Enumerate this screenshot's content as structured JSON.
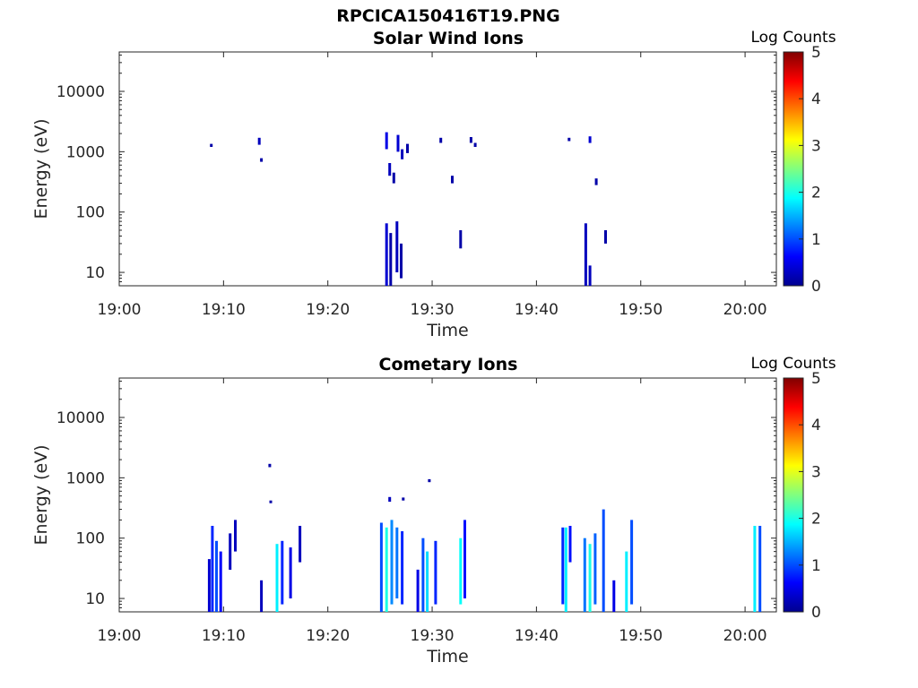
{
  "figure_title": "RPCICA150416T19.PNG",
  "chart_data": [
    {
      "type": "heatmap",
      "title": "Solar Wind Ions",
      "xlabel": "Time",
      "ylabel": "Energy (eV)",
      "xlim": [
        "19:00",
        "20:03"
      ],
      "ylim": [
        6,
        45000
      ],
      "yscale": "log",
      "x_ticks": [
        "19:00",
        "19:10",
        "19:20",
        "19:30",
        "19:40",
        "19:50",
        "20:00"
      ],
      "y_ticks": [
        "10",
        "100",
        "1000",
        "10000"
      ],
      "colorbar": {
        "title": "Log Counts",
        "range": [
          0,
          5
        ],
        "ticks": [
          "0",
          "1",
          "2",
          "3",
          "4",
          "5"
        ],
        "colormap": "jet"
      },
      "grid": false,
      "cells": [
        {
          "t": "19:08.7",
          "e": [
            1200,
            1350
          ],
          "v": 0.2
        },
        {
          "t": "19:13.3",
          "e": [
            1300,
            1700
          ],
          "v": 0.3
        },
        {
          "t": "19:13.5",
          "e": [
            680,
            780
          ],
          "v": 0.2
        },
        {
          "t": "19:25.5",
          "e": [
            1100,
            2100
          ],
          "v": 0.5
        },
        {
          "t": "19:25.8",
          "e": [
            400,
            650
          ],
          "v": 0.3
        },
        {
          "t": "19:26.2",
          "e": [
            300,
            450
          ],
          "v": 0.2
        },
        {
          "t": "19:26.6",
          "e": [
            1000,
            1900
          ],
          "v": 0.4
        },
        {
          "t": "19:27.0",
          "e": [
            750,
            1100
          ],
          "v": 0.3
        },
        {
          "t": "19:27.5",
          "e": [
            950,
            1350
          ],
          "v": 0.2
        },
        {
          "t": "19:25.5",
          "e": [
            6,
            65
          ],
          "v": 0.4
        },
        {
          "t": "19:25.9",
          "e": [
            6,
            45
          ],
          "v": 0.2
        },
        {
          "t": "19:26.5",
          "e": [
            10,
            70
          ],
          "v": 0.3
        },
        {
          "t": "19:26.9",
          "e": [
            8,
            30
          ],
          "v": 0.2
        },
        {
          "t": "19:30.7",
          "e": [
            1400,
            1700
          ],
          "v": 0.2
        },
        {
          "t": "19:31.8",
          "e": [
            300,
            400
          ],
          "v": 0.2
        },
        {
          "t": "19:32.6",
          "e": [
            25,
            50
          ],
          "v": 0.2
        },
        {
          "t": "19:33.6",
          "e": [
            1400,
            1750
          ],
          "v": 0.2
        },
        {
          "t": "19:34.0",
          "e": [
            1200,
            1400
          ],
          "v": 0.2
        },
        {
          "t": "19:43.0",
          "e": [
            1500,
            1700
          ],
          "v": 0.2
        },
        {
          "t": "19:44.6",
          "e": [
            6,
            65
          ],
          "v": 0.3
        },
        {
          "t": "19:45.0",
          "e": [
            6,
            13
          ],
          "v": 0.3
        },
        {
          "t": "19:45.0",
          "e": [
            1400,
            1800
          ],
          "v": 0.4
        },
        {
          "t": "19:45.6",
          "e": [
            280,
            360
          ],
          "v": 0.2
        },
        {
          "t": "19:46.5",
          "e": [
            30,
            50
          ],
          "v": 0.2
        }
      ]
    },
    {
      "type": "heatmap",
      "title": "Cometary Ions",
      "xlabel": "Time",
      "ylabel": "Energy (eV)",
      "xlim": [
        "19:00",
        "20:03"
      ],
      "ylim": [
        6,
        45000
      ],
      "yscale": "log",
      "x_ticks": [
        "19:00",
        "19:10",
        "19:20",
        "19:30",
        "19:40",
        "19:50",
        "20:00"
      ],
      "y_ticks": [
        "10",
        "100",
        "1000",
        "10000"
      ],
      "colorbar": {
        "title": "Log Counts",
        "range": [
          0,
          5
        ],
        "ticks": [
          "0",
          "1",
          "2",
          "3",
          "4",
          "5"
        ],
        "colormap": "jet"
      },
      "grid": false,
      "cells": [
        {
          "t": "19:08.5",
          "e": [
            6,
            45
          ],
          "v": 0.4
        },
        {
          "t": "19:08.8",
          "e": [
            6,
            160
          ],
          "v": 0.8
        },
        {
          "t": "19:09.2",
          "e": [
            6,
            90
          ],
          "v": 1.0
        },
        {
          "t": "19:09.6",
          "e": [
            6,
            60
          ],
          "v": 0.6
        },
        {
          "t": "19:10.5",
          "e": [
            30,
            120
          ],
          "v": 0.3
        },
        {
          "t": "19:11.0",
          "e": [
            60,
            200
          ],
          "v": 0.3
        },
        {
          "t": "19:13.5",
          "e": [
            6,
            20
          ],
          "v": 0.3
        },
        {
          "t": "19:15.0",
          "e": [
            6,
            80
          ],
          "v": 1.8
        },
        {
          "t": "19:15.5",
          "e": [
            8,
            90
          ],
          "v": 0.8
        },
        {
          "t": "19:16.3",
          "e": [
            10,
            70
          ],
          "v": 0.5
        },
        {
          "t": "19:17.2",
          "e": [
            40,
            160
          ],
          "v": 0.3
        },
        {
          "t": "19:14.3",
          "e": [
            1500,
            1700
          ],
          "v": 0.2
        },
        {
          "t": "19:14.4",
          "e": [
            380,
            420
          ],
          "v": 0.2
        },
        {
          "t": "19:25.0",
          "e": [
            6,
            180
          ],
          "v": 1.0
        },
        {
          "t": "19:25.5",
          "e": [
            6,
            150
          ],
          "v": 2.0
        },
        {
          "t": "19:26.0",
          "e": [
            8,
            200
          ],
          "v": 1.3
        },
        {
          "t": "19:26.5",
          "e": [
            10,
            150
          ],
          "v": 1.2
        },
        {
          "t": "19:27.0",
          "e": [
            8,
            130
          ],
          "v": 0.8
        },
        {
          "t": "19:25.8",
          "e": [
            400,
            480
          ],
          "v": 0.3
        },
        {
          "t": "19:27.1",
          "e": [
            420,
            470
          ],
          "v": 0.2
        },
        {
          "t": "19:28.5",
          "e": [
            6,
            30
          ],
          "v": 0.5
        },
        {
          "t": "19:29.0",
          "e": [
            6,
            100
          ],
          "v": 1.0
        },
        {
          "t": "19:29.4",
          "e": [
            6,
            60
          ],
          "v": 1.7
        },
        {
          "t": "19:30.2",
          "e": [
            8,
            90
          ],
          "v": 0.8
        },
        {
          "t": "19:29.6",
          "e": [
            850,
            950
          ],
          "v": 0.2
        },
        {
          "t": "19:32.6",
          "e": [
            8,
            100
          ],
          "v": 1.9
        },
        {
          "t": "19:33.0",
          "e": [
            10,
            200
          ],
          "v": 0.7
        },
        {
          "t": "19:42.4",
          "e": [
            8,
            150
          ],
          "v": 0.8
        },
        {
          "t": "19:42.7",
          "e": [
            6,
            150
          ],
          "v": 1.8
        },
        {
          "t": "19:43.1",
          "e": [
            40,
            160
          ],
          "v": 0.7
        },
        {
          "t": "19:44.5",
          "e": [
            6,
            100
          ],
          "v": 1.2
        },
        {
          "t": "19:45.0",
          "e": [
            6,
            80
          ],
          "v": 2.0
        },
        {
          "t": "19:45.5",
          "e": [
            8,
            120
          ],
          "v": 1.1
        },
        {
          "t": "19:46.3",
          "e": [
            6,
            300
          ],
          "v": 1.0
        },
        {
          "t": "19:47.3",
          "e": [
            6,
            20
          ],
          "v": 0.5
        },
        {
          "t": "19:48.5",
          "e": [
            6,
            60
          ],
          "v": 1.8
        },
        {
          "t": "19:49.0",
          "e": [
            8,
            200
          ],
          "v": 1.0
        },
        {
          "t": "20:00.8",
          "e": [
            6,
            160
          ],
          "v": 1.8
        },
        {
          "t": "20:01.3",
          "e": [
            6,
            160
          ],
          "v": 1.0
        }
      ]
    }
  ]
}
